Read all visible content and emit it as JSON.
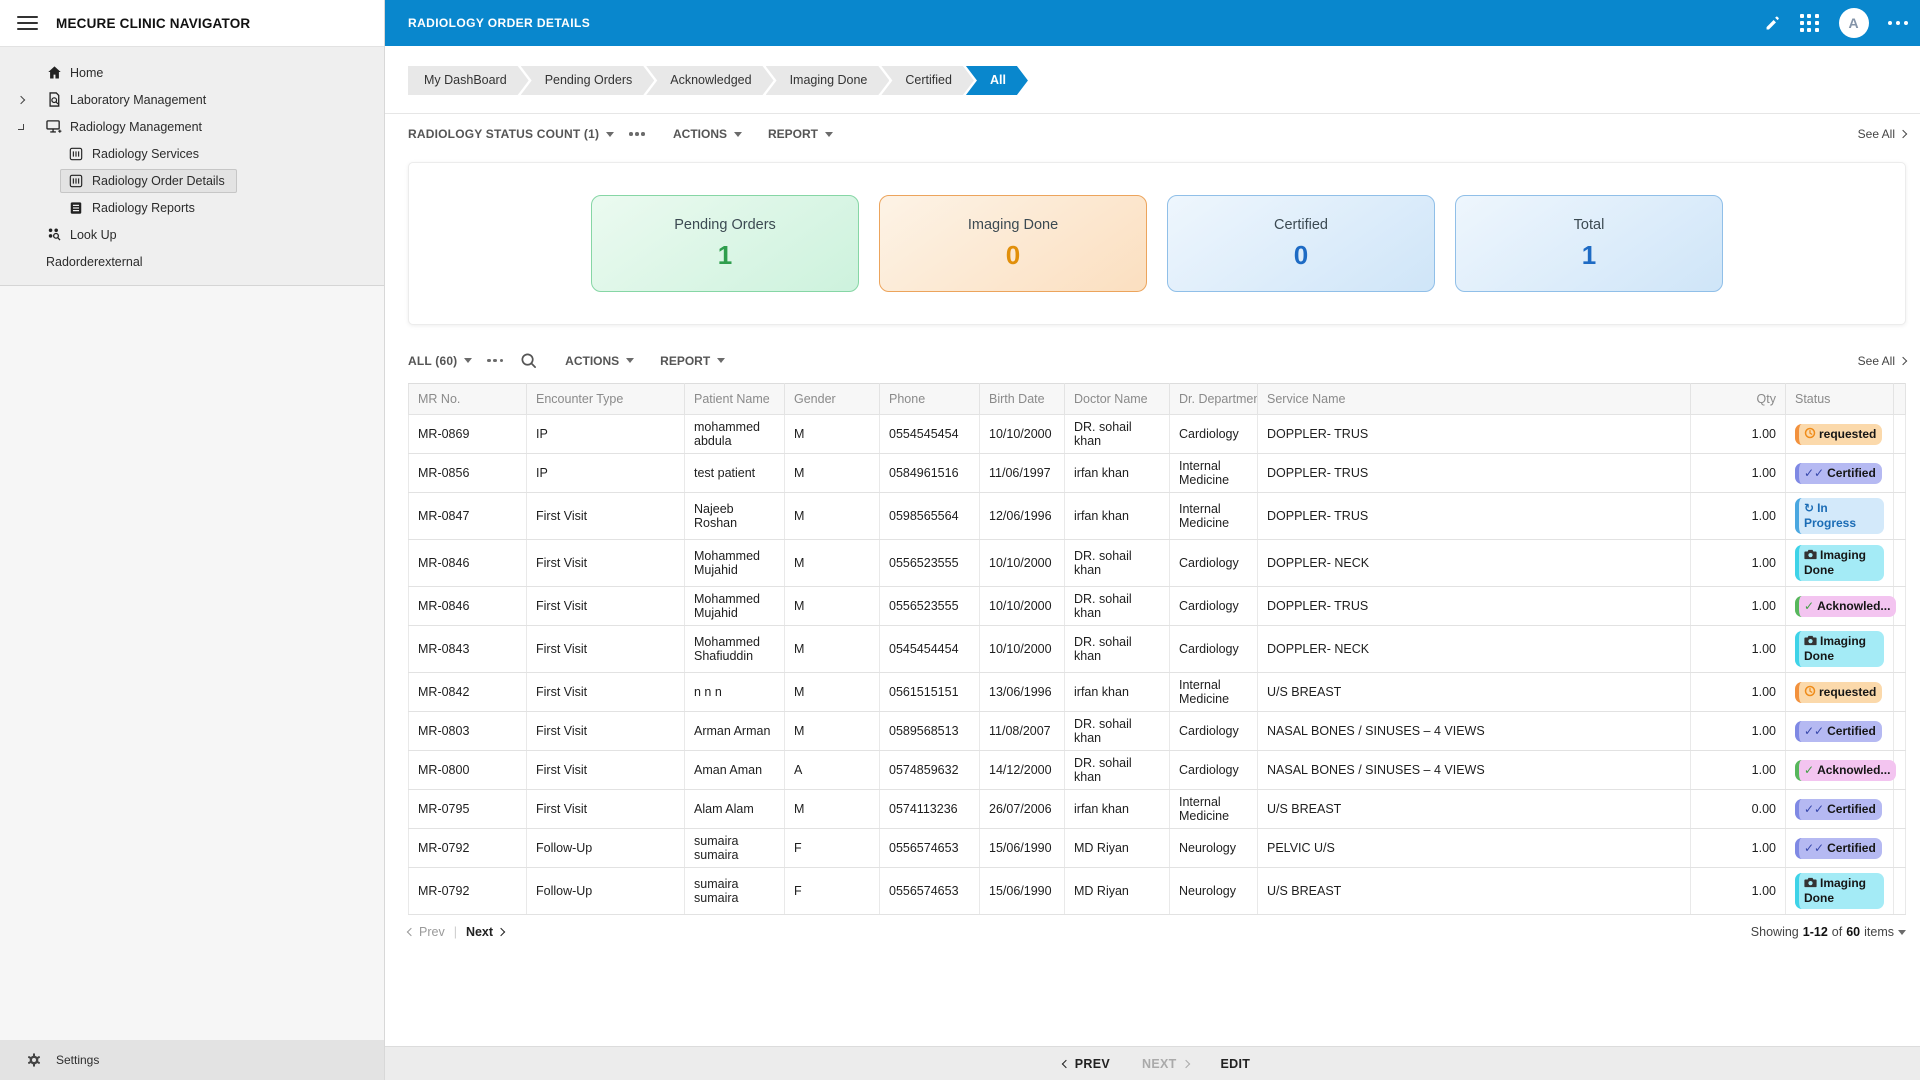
{
  "app": {
    "title": "MECURE CLINIC NAVIGATOR"
  },
  "sidebar": {
    "items": [
      {
        "label": "Home",
        "icon": "home-icon",
        "chevron": null,
        "indent": false,
        "selected": false
      },
      {
        "label": "Laboratory Management",
        "icon": "lab-icon",
        "chevron": "right",
        "indent": false,
        "selected": false
      },
      {
        "label": "Radiology Management",
        "icon": "radiology-icon",
        "chevron": "down",
        "indent": false,
        "selected": false
      },
      {
        "label": "Radiology Services",
        "icon": "module-icon",
        "chevron": null,
        "indent": true,
        "selected": false
      },
      {
        "label": "Radiology Order Details",
        "icon": "module-icon",
        "chevron": null,
        "indent": true,
        "selected": true
      },
      {
        "label": "Radiology Reports",
        "icon": "report-icon",
        "chevron": null,
        "indent": true,
        "selected": false
      },
      {
        "label": "Look Up",
        "icon": "lookup-icon",
        "chevron": null,
        "indent": false,
        "selected": false
      },
      {
        "label": "Radorderexternal",
        "icon": null,
        "chevron": null,
        "indent": false,
        "selected": false
      }
    ],
    "settings_label": "Settings"
  },
  "header": {
    "title": "RADIOLOGY ORDER DETAILS",
    "avatar_initial": "A"
  },
  "tabs": [
    {
      "label": "My DashBoard",
      "active": false
    },
    {
      "label": "Pending Orders",
      "active": false
    },
    {
      "label": "Acknowledged",
      "active": false
    },
    {
      "label": "Imaging Done",
      "active": false
    },
    {
      "label": "Certified",
      "active": false
    },
    {
      "label": "All",
      "active": true
    }
  ],
  "status_section": {
    "title": "RADIOLOGY STATUS COUNT (1)",
    "actions_label": "ACTIONS",
    "report_label": "REPORT",
    "see_all_label": "See All",
    "cards": [
      {
        "label": "Pending Orders",
        "value": "1",
        "color": "green"
      },
      {
        "label": "Imaging Done",
        "value": "0",
        "color": "orange"
      },
      {
        "label": "Certified",
        "value": "0",
        "color": "blue"
      },
      {
        "label": "Total",
        "value": "1",
        "color": "blue"
      }
    ]
  },
  "table_section": {
    "filter_label": "ALL (60)",
    "actions_label": "ACTIONS",
    "report_label": "REPORT",
    "see_all_label": "See All",
    "columns": [
      "MR No.",
      "Encounter Type",
      "Patient Name",
      "Gender",
      "Phone",
      "Birth Date",
      "Doctor Name",
      "Dr. Department",
      "Service Name",
      "Qty",
      "Status"
    ],
    "rows": [
      {
        "mr_no": "MR-0869",
        "encounter_type": "IP",
        "patient_name": "mohammed abdula",
        "gender": "M",
        "phone": "0554545454",
        "birth_date": "10/10/2000",
        "doctor_name": "DR. sohail khan",
        "department": "Cardiology",
        "service_name": "DOPPLER- TRUS",
        "qty": "1.00",
        "status": "requested"
      },
      {
        "mr_no": "MR-0856",
        "encounter_type": "IP",
        "patient_name": "test patient",
        "gender": "M",
        "phone": "0584961516",
        "birth_date": "11/06/1997",
        "doctor_name": "irfan khan",
        "department": "Internal Medicine",
        "service_name": "DOPPLER- TRUS",
        "qty": "1.00",
        "status": "certified"
      },
      {
        "mr_no": "MR-0847",
        "encounter_type": "First Visit",
        "patient_name": "Najeeb Roshan",
        "gender": "M",
        "phone": "0598565564",
        "birth_date": "12/06/1996",
        "doctor_name": "irfan khan",
        "department": "Internal Medicine",
        "service_name": "DOPPLER- TRUS",
        "qty": "1.00",
        "status": "in_progress"
      },
      {
        "mr_no": "MR-0846",
        "encounter_type": "First Visit",
        "patient_name": "Mohammed Mujahid",
        "gender": "M",
        "phone": "0556523555",
        "birth_date": "10/10/2000",
        "doctor_name": "DR. sohail khan",
        "department": "Cardiology",
        "service_name": "DOPPLER- NECK",
        "qty": "1.00",
        "status": "imaging_done"
      },
      {
        "mr_no": "MR-0846",
        "encounter_type": "First Visit",
        "patient_name": "Mohammed Mujahid",
        "gender": "M",
        "phone": "0556523555",
        "birth_date": "10/10/2000",
        "doctor_name": "DR. sohail khan",
        "department": "Cardiology",
        "service_name": "DOPPLER- TRUS",
        "qty": "1.00",
        "status": "acknowledged"
      },
      {
        "mr_no": "MR-0843",
        "encounter_type": "First Visit",
        "patient_name": "Mohammed Shafiuddin",
        "gender": "M",
        "phone": "0545454454",
        "birth_date": "10/10/2000",
        "doctor_name": "DR. sohail khan",
        "department": "Cardiology",
        "service_name": "DOPPLER- NECK",
        "qty": "1.00",
        "status": "imaging_done"
      },
      {
        "mr_no": "MR-0842",
        "encounter_type": "First Visit",
        "patient_name": "n n n",
        "gender": "M",
        "phone": "0561515151",
        "birth_date": "13/06/1996",
        "doctor_name": "irfan khan",
        "department": "Internal Medicine",
        "service_name": "U/S BREAST",
        "qty": "1.00",
        "status": "requested"
      },
      {
        "mr_no": "MR-0803",
        "encounter_type": "First Visit",
        "patient_name": "Arman Arman",
        "gender": "M",
        "phone": "0589568513",
        "birth_date": "11/08/2007",
        "doctor_name": "DR. sohail khan",
        "department": "Cardiology",
        "service_name": "NASAL BONES / SINUSES – 4 VIEWS",
        "qty": "1.00",
        "status": "certified"
      },
      {
        "mr_no": "MR-0800",
        "encounter_type": "First Visit",
        "patient_name": "Aman Aman",
        "gender": "A",
        "phone": "0574859632",
        "birth_date": "14/12/2000",
        "doctor_name": "DR. sohail khan",
        "department": "Cardiology",
        "service_name": "NASAL BONES / SINUSES – 4 VIEWS",
        "qty": "1.00",
        "status": "acknowledged"
      },
      {
        "mr_no": "MR-0795",
        "encounter_type": "First Visit",
        "patient_name": "Alam Alam",
        "gender": "M",
        "phone": "0574113236",
        "birth_date": "26/07/2006",
        "doctor_name": "irfan khan",
        "department": "Internal Medicine",
        "service_name": "U/S BREAST",
        "qty": "0.00",
        "status": "certified"
      },
      {
        "mr_no": "MR-0792",
        "encounter_type": "Follow-Up",
        "patient_name": "sumaira sumaira",
        "gender": "F",
        "phone": "0556574653",
        "birth_date": "15/06/1990",
        "doctor_name": "MD Riyan",
        "department": "Neurology",
        "service_name": "PELVIC U/S",
        "qty": "1.00",
        "status": "certified"
      },
      {
        "mr_no": "MR-0792",
        "encounter_type": "Follow-Up",
        "patient_name": "sumaira sumaira",
        "gender": "F",
        "phone": "0556574653",
        "birth_date": "15/06/1990",
        "doctor_name": "MD Riyan",
        "department": "Neurology",
        "service_name": "U/S BREAST",
        "qty": "1.00",
        "status": "imaging_done"
      }
    ],
    "pagination": {
      "prev_label": "Prev",
      "next_label": "Next",
      "showing_label": "Showing",
      "range": "1-12",
      "of_label": "of",
      "total": "60",
      "items_label": "items"
    }
  },
  "statuses": {
    "requested": {
      "label": "requested",
      "bg": "#fbd9ab",
      "border": "#f2913d",
      "text": "#161616",
      "icon": "clock-icon",
      "icon_color": "#ef8c1a"
    },
    "certified": {
      "label": "Certified",
      "bg": "#b5b9f2",
      "border": "#7f89e4",
      "text": "#161616",
      "icon": "double-check-icon",
      "icon_color": "#3949ab"
    },
    "in_progress": {
      "label": "In Progress",
      "bg": "#d3e9fa",
      "border": "#4aa7e0",
      "text": "#1b6cb5",
      "icon": "refresh-icon",
      "icon_color": "#1b6cb5"
    },
    "imaging_done": {
      "label": "Imaging Done",
      "bg": "#a4ebf6",
      "border": "#3ed3e8",
      "text": "#161616",
      "icon": "camera-icon",
      "icon_color": "#333333"
    },
    "acknowledged": {
      "label": "Acknowled...",
      "bg": "#f3c4f0",
      "border": "#57b75c",
      "text": "#161616",
      "icon": "check-icon",
      "icon_color": "#43a047"
    }
  },
  "footer": {
    "prev_label": "PREV",
    "next_label": "NEXT",
    "edit_label": "EDIT"
  },
  "colors": {
    "accent_blue": "#0987cd",
    "green": "#2f9e4d",
    "orange": "#e18f0a",
    "blue": "#1e6bc4"
  }
}
